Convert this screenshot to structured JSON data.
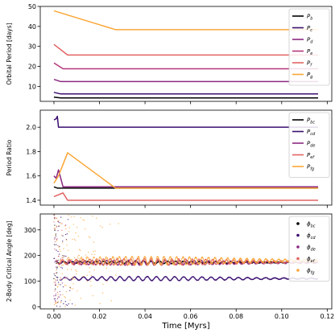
{
  "chart_data": {
    "x_axis": {
      "label": "Time [Myrs]",
      "lim": [
        -0.006,
        0.122
      ],
      "ticks": [
        0.0,
        0.02,
        0.04,
        0.06,
        0.08,
        0.1,
        0.12
      ],
      "tick_labels": [
        "0.00",
        "0.02",
        "0.04",
        "0.06",
        "0.08",
        "0.10",
        "0.12"
      ],
      "t_end": 0.116
    },
    "panels": [
      {
        "type": "line",
        "ylabel": "Orbital Period [days]",
        "ylim": [
          2.5,
          50
        ],
        "yticks": [
          10,
          20,
          30,
          40,
          50
        ],
        "ytick_labels": [
          "10",
          "20",
          "30",
          "40",
          "50"
        ],
        "legend": {
          "placement": "upper right",
          "markers": "line"
        },
        "series": [
          {
            "name": "P",
            "sub": "b",
            "color": "#000000",
            "points": [
              [
                0,
                4.6
              ],
              [
                0.003,
                4.2
              ],
              [
                0.116,
                4.2
              ]
            ]
          },
          {
            "name": "P",
            "sub": "c",
            "color": "#3b0f70",
            "points": [
              [
                0,
                7.0
              ],
              [
                0.003,
                6.2
              ],
              [
                0.116,
                6.2
              ]
            ]
          },
          {
            "name": "P",
            "sub": "d",
            "color": "#8c2981",
            "points": [
              [
                0,
                13.5
              ],
              [
                0.003,
                12.4
              ],
              [
                0.116,
                12.4
              ]
            ]
          },
          {
            "name": "P",
            "sub": "e",
            "color": "#b5367a",
            "points": [
              [
                0,
                21.7
              ],
              [
                0.004,
                18.8
              ],
              [
                0.116,
                18.8
              ]
            ]
          },
          {
            "name": "P",
            "sub": "f",
            "color": "#e16462",
            "points": [
              [
                0,
                31.0
              ],
              [
                0.006,
                25.7
              ],
              [
                0.116,
                25.7
              ]
            ]
          },
          {
            "name": "P",
            "sub": "g",
            "color": "#fca636",
            "points": [
              [
                0,
                47.8
              ],
              [
                0.027,
                38.4
              ],
              [
                0.116,
                38.4
              ]
            ]
          }
        ]
      },
      {
        "type": "line",
        "ylabel": "Period Ratio",
        "ylim": [
          1.36,
          2.14
        ],
        "yticks": [
          1.4,
          1.6,
          1.8,
          2.0
        ],
        "ytick_labels": [
          "1.4",
          "1.6",
          "1.8",
          "2.0"
        ],
        "legend": {
          "placement": "upper right",
          "markers": "line"
        },
        "series": [
          {
            "name": "P",
            "sub": "bc",
            "color": "#000000",
            "points": [
              [
                0,
                1.51
              ],
              [
                0.0015,
                1.5
              ],
              [
                0.116,
                1.5
              ]
            ]
          },
          {
            "name": "P",
            "sub": "cd",
            "color": "#3b0f70",
            "points": [
              [
                0,
                2.06
              ],
              [
                0.001,
                2.07
              ],
              [
                0.0015,
                2.09
              ],
              [
                0.002,
                2.0
              ],
              [
                0.116,
                2.0
              ]
            ]
          },
          {
            "name": "P",
            "sub": "de",
            "color": "#8c2981",
            "points": [
              [
                0,
                1.6
              ],
              [
                0.001,
                1.58
              ],
              [
                0.002,
                1.65
              ],
              [
                0.004,
                1.51
              ],
              [
                0.116,
                1.51
              ]
            ]
          },
          {
            "name": "P",
            "sub": "ef",
            "color": "#e16462",
            "points": [
              [
                0,
                1.43
              ],
              [
                0.004,
                1.46
              ],
              [
                0.006,
                1.4
              ],
              [
                0.116,
                1.4
              ]
            ]
          },
          {
            "name": "P",
            "sub": "fg",
            "color": "#fca636",
            "points": [
              [
                0,
                1.54
              ],
              [
                0.002,
                1.6
              ],
              [
                0.006,
                1.79
              ],
              [
                0.027,
                1.5
              ],
              [
                0.116,
                1.5
              ]
            ]
          }
        ]
      },
      {
        "type": "scatter",
        "ylabel": "2-Body Critical Angle [deg]",
        "ylim": [
          -8,
          362
        ],
        "yticks": [
          0,
          100,
          200,
          300
        ],
        "ytick_labels": [
          "0",
          "100",
          "200",
          "300"
        ],
        "legend": {
          "placement": "upper right",
          "markers": "dot"
        },
        "series": [
          {
            "name": "ϕ",
            "sub": "bc",
            "color": "#000000",
            "center": 173,
            "amplitude": 3,
            "oscillation_period": 0.0035,
            "scatter_until": 0.004
          },
          {
            "name": "ϕ",
            "sub": "cd",
            "color": "#3b0f70",
            "center": 110,
            "amplitude": 5,
            "oscillation_period": 0.004,
            "scatter_until": 0.01
          },
          {
            "name": "ϕ",
            "sub": "de",
            "color": "#8c2981",
            "center": 172,
            "amplitude": 6,
            "oscillation_period": 0.0032,
            "scatter_until": 0.006
          },
          {
            "name": "ϕ",
            "sub": "ef",
            "color": "#e16462",
            "center": 175,
            "amplitude": 8,
            "oscillation_period": 0.003,
            "scatter_until": 0.006
          },
          {
            "name": "ϕ",
            "sub": "fg",
            "color": "#fca636",
            "center": 180,
            "amplitude": 10,
            "oscillation_period": 0.0028,
            "scatter_until": 0.03
          }
        ]
      }
    ]
  }
}
